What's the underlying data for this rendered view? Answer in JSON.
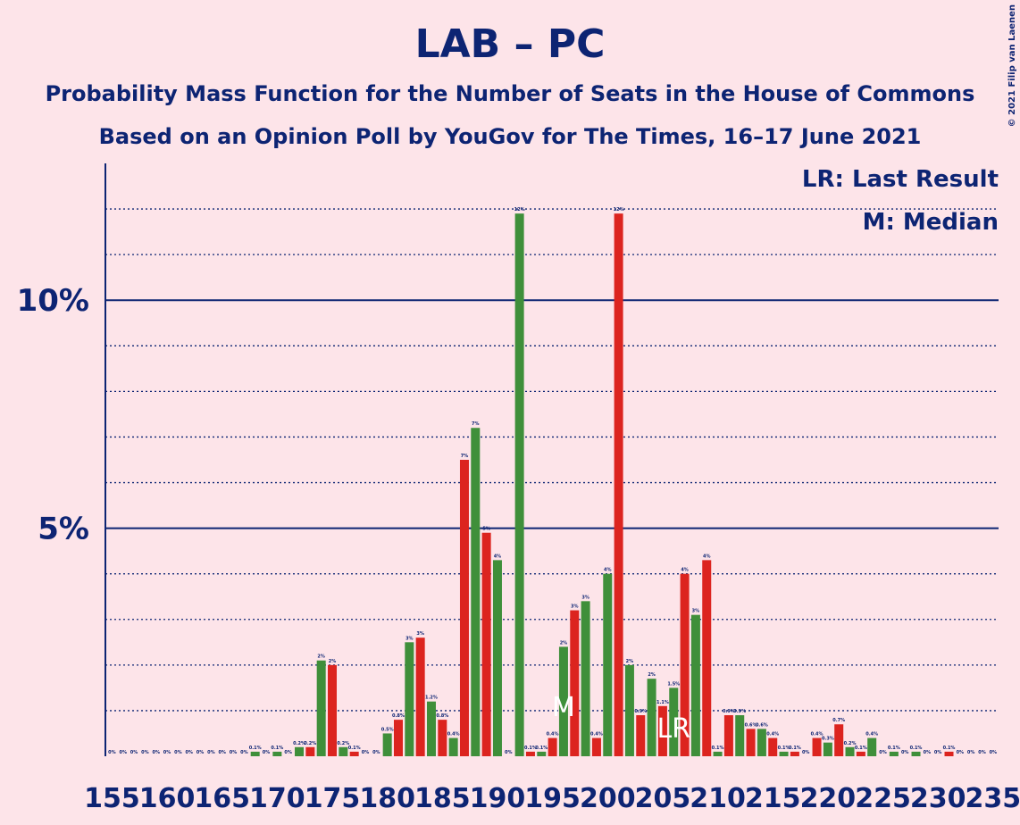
{
  "chart_data": {
    "type": "bar",
    "title": "LAB – PC",
    "subtitle": "Probability Mass Function for the Number of Seats in the House of Commons",
    "subtitle2": "Based on an Opinion Poll by YouGov for The Times, 16–17 June 2021",
    "copyright": "© 2021 Filip van Laenen",
    "x": [
      155,
      156,
      157,
      158,
      159,
      160,
      161,
      162,
      163,
      164,
      165,
      166,
      167,
      168,
      169,
      170,
      171,
      172,
      173,
      174,
      175,
      176,
      177,
      178,
      179,
      180,
      181,
      182,
      183,
      184,
      185,
      186,
      187,
      188,
      189,
      190,
      191,
      192,
      193,
      194,
      195,
      196,
      197,
      198,
      199,
      200,
      201,
      202,
      203,
      204,
      205,
      206,
      207,
      208,
      209,
      210,
      211,
      212,
      213,
      214,
      215,
      216,
      217,
      218,
      219,
      220,
      221,
      222,
      223,
      224,
      225,
      226,
      227,
      228,
      229,
      230,
      231,
      232,
      233,
      234,
      235
    ],
    "values": [
      0,
      0,
      0,
      0,
      0,
      0,
      0,
      0,
      0,
      0,
      0,
      0,
      0,
      0.1,
      0,
      0.1,
      0,
      0.2,
      0.2,
      2.1,
      2.0,
      0.2,
      0.1,
      0,
      0,
      0.5,
      0.8,
      2.5,
      2.6,
      1.2,
      0.8,
      0.4,
      6.5,
      7.2,
      4.9,
      4.3,
      0,
      11.9,
      0.1,
      0.1,
      0.4,
      2.4,
      3.2,
      3.4,
      0.4,
      4.0,
      11.9,
      2.0,
      0.9,
      1.7,
      1.1,
      1.5,
      4.0,
      3.1,
      4.3,
      0.1,
      0.9,
      0.9,
      0.6,
      0.6,
      0.4,
      0.1,
      0.1,
      0,
      0.4,
      0.3,
      0.7,
      0.2,
      0.1,
      0.4,
      0,
      0.1,
      0,
      0.1,
      0,
      0,
      0.1,
      0,
      0,
      0,
      0
    ],
    "value_labels": [
      "0%",
      "0%",
      "0%",
      "0%",
      "0%",
      "0%",
      "0%",
      "0%",
      "0%",
      "0%",
      "0%",
      "0%",
      "0%",
      "0.1%",
      "0%",
      "0.1%",
      "0%",
      "0.2%",
      "0.2%",
      "2%",
      "2%",
      "0.2%",
      "0.1%",
      "0%",
      "0%",
      "0.5%",
      "0.8%",
      "3%",
      "3%",
      "1.2%",
      "0.8%",
      "0.4%",
      "7%",
      "7%",
      "5%",
      "4%",
      "0%",
      "12%",
      "0.1%",
      "0.1%",
      "0.4%",
      "2%",
      "3%",
      "3%",
      "0.4%",
      "4%",
      "12%",
      "2%",
      "0.9%",
      "2%",
      "1.1%",
      "1.5%",
      "4%",
      "3%",
      "4%",
      "0.1%",
      "0.9%",
      "0.9%",
      "0.6%",
      "0.6%",
      "0.4%",
      "0.1%",
      "0.1%",
      "0%",
      "0.4%",
      "0.3%",
      "0.7%",
      "0.2%",
      "0.1%",
      "0.4%",
      "0%",
      "0.1%",
      "0%",
      "0.1%",
      "0%",
      "0%",
      "0.1%",
      "0%",
      "0%",
      "0%",
      "0%"
    ],
    "colors": [
      "#dc241f",
      "#3f8f3a"
    ],
    "xlim": [
      154.4,
      235.5
    ],
    "xticks": [
      155,
      160,
      165,
      170,
      175,
      180,
      185,
      190,
      195,
      200,
      205,
      210,
      215,
      220,
      225,
      230,
      235
    ],
    "ylim": [
      0,
      13
    ],
    "yticks": [
      {
        "value": 5,
        "label": "5%"
      },
      {
        "value": 10,
        "label": "10%"
      }
    ],
    "yminor": [
      1,
      2,
      3,
      4,
      6,
      7,
      8,
      9,
      11,
      12
    ],
    "median": {
      "x": 196,
      "label": "M",
      "legend": "M: Median"
    },
    "last_result": {
      "x": 206,
      "label": "LR",
      "legend": "LR: Last Result"
    }
  }
}
